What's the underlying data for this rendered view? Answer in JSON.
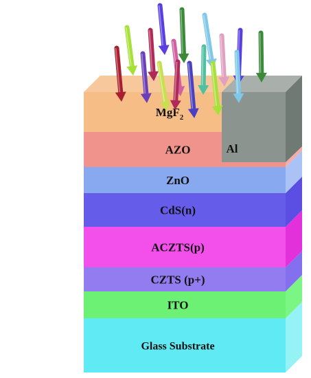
{
  "diagram": {
    "layers": [
      {
        "id": "mgf2",
        "label": "MgF",
        "subscript": "2",
        "color": "#f6b87e",
        "side_color": "#f7c89c"
      },
      {
        "id": "azo",
        "label": "AZO",
        "color": "#f08b84",
        "side_color": "#f4a5a0"
      },
      {
        "id": "zno",
        "label": "ZnO",
        "color": "#7fa2ee",
        "side_color": "#a3bdf4"
      },
      {
        "id": "cds",
        "label": "CdS(n)",
        "color": "#5a50e8",
        "side_color": "#4d3fe0"
      },
      {
        "id": "aczts",
        "label": "ACZTS(p)",
        "color": "#f242e8",
        "side_color": "#e020d8"
      },
      {
        "id": "czts",
        "label": "CZTS (p+)",
        "color": "#8a72ef",
        "side_color": "#7a63ee"
      },
      {
        "id": "ito",
        "label": "ITO",
        "color": "#62f06a",
        "side_color": "#70f478"
      },
      {
        "id": "glass",
        "label": "Glass Substrate",
        "color": "#54e8f2",
        "side_color": "#8cf2f4"
      }
    ],
    "contact": {
      "label": "Al",
      "color": "#8c948f"
    },
    "light_arrow_colors": [
      "#5a3fe0",
      "#3a8a3a",
      "#a8e03a",
      "#b02a58",
      "#7fc8e8",
      "#a82030",
      "#6a3fb8",
      "#c8e050",
      "#d060a0",
      "#4a40c0",
      "#50c0a0",
      "#e0a0c0"
    ]
  }
}
